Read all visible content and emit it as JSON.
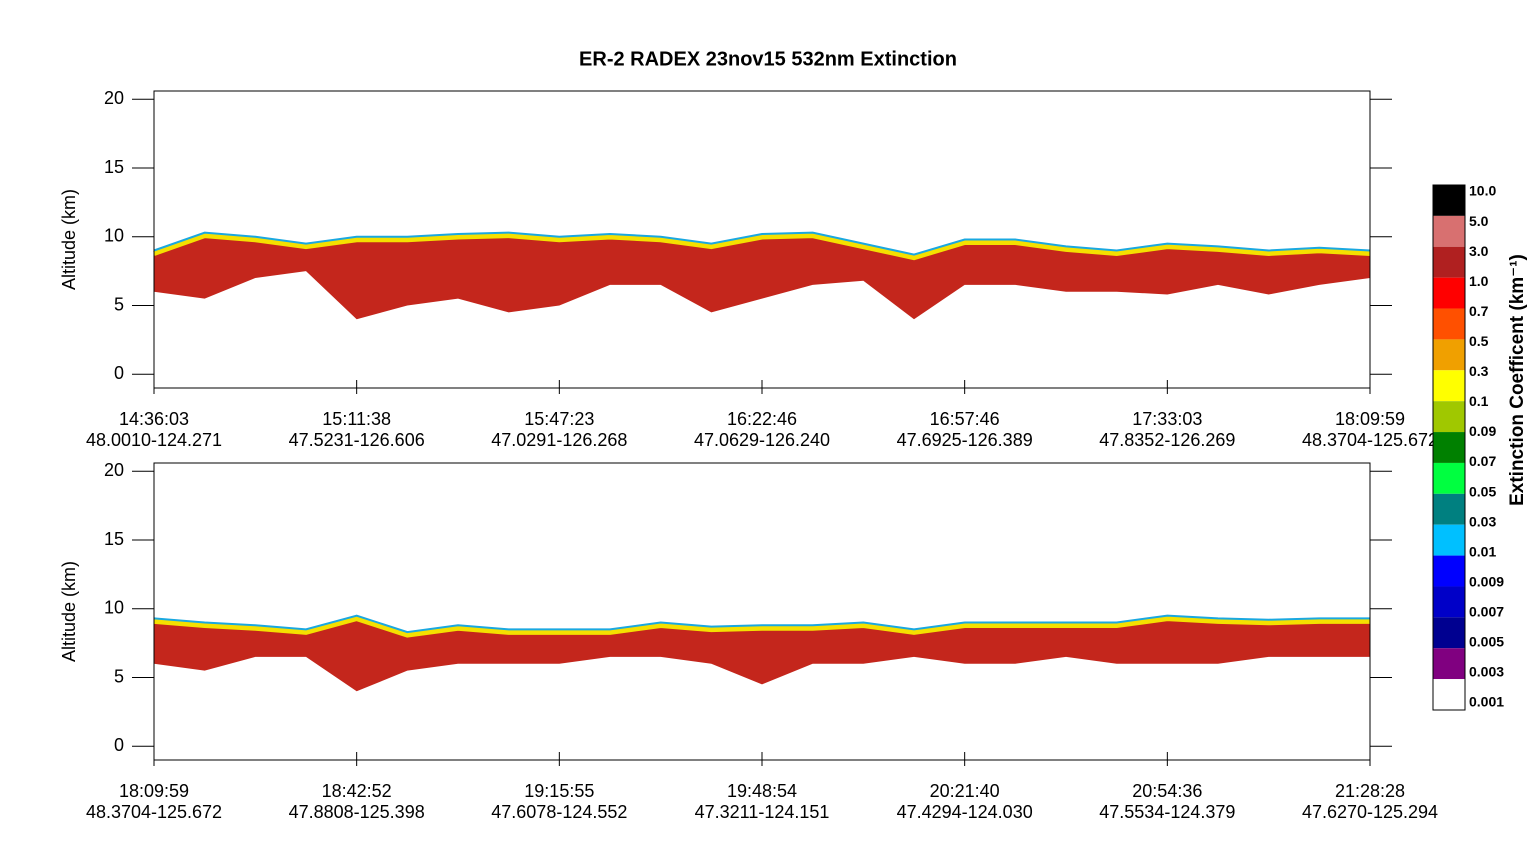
{
  "chart_data": [
    {
      "type": "curtain",
      "title": "ER-2  RADEX  23nov15  532nm Extinction",
      "ylabel": "Altitude (km)",
      "ylim": [
        -1,
        20.6
      ],
      "yticks": [
        0,
        5,
        10,
        15,
        20
      ],
      "xlim": [
        0,
        6
      ],
      "xticks": [
        {
          "value": 0,
          "label": "14:36:03"
        },
        {
          "value": 1,
          "label": "15:11:38"
        },
        {
          "value": 2,
          "label": "15:47:23"
        },
        {
          "value": 3,
          "label": "16:22:46"
        },
        {
          "value": 4,
          "label": "16:57:46"
        },
        {
          "value": 5,
          "label": "17:33:03"
        },
        {
          "value": 6,
          "label": "18:09:59"
        }
      ],
      "locations": [
        "48.0010-124.271",
        "47.5231-126.606",
        "47.0291-126.268",
        "47.0629-126.240",
        "47.6925-126.389",
        "47.8352-126.269",
        "48.3704-125.672"
      ],
      "fill_color": "#c4261c",
      "edge_color": "#f5e000",
      "top_color": "#1aa8e0",
      "x": [
        0,
        0.25,
        0.5,
        0.75,
        1,
        1.25,
        1.5,
        1.75,
        2,
        2.25,
        2.5,
        2.75,
        3,
        3.25,
        3.5,
        3.75,
        4,
        4.25,
        4.5,
        4.75,
        5,
        5.25,
        5.5,
        5.75,
        6
      ],
      "cloud_top": [
        9,
        10.3,
        10,
        9.5,
        10,
        10,
        10.2,
        10.3,
        10,
        10.2,
        10,
        9.5,
        10.2,
        10.3,
        9.5,
        8.7,
        9.8,
        9.8,
        9.3,
        9,
        9.5,
        9.3,
        9,
        9.2,
        9
      ],
      "cloud_base": [
        6,
        5.5,
        7,
        7.5,
        4,
        5,
        5.5,
        4.5,
        5,
        6.5,
        6.5,
        4.5,
        5.5,
        6.5,
        6.8,
        4,
        6.5,
        6.5,
        6,
        6,
        5.8,
        6.5,
        5.8,
        6.5,
        7
      ]
    },
    {
      "type": "curtain",
      "ylabel": "Altitude (km)",
      "ylim": [
        -1,
        20.6
      ],
      "yticks": [
        0,
        5,
        10,
        15,
        20
      ],
      "xlim": [
        0,
        6
      ],
      "xticks": [
        {
          "value": 0,
          "label": "18:09:59"
        },
        {
          "value": 1,
          "label": "18:42:52"
        },
        {
          "value": 2,
          "label": "19:15:55"
        },
        {
          "value": 3,
          "label": "19:48:54"
        },
        {
          "value": 4,
          "label": "20:21:40"
        },
        {
          "value": 5,
          "label": "20:54:36"
        },
        {
          "value": 6,
          "label": "21:28:28"
        }
      ],
      "locations": [
        "48.3704-125.672",
        "47.8808-125.398",
        "47.6078-124.552",
        "47.3211-124.151",
        "47.4294-124.030",
        "47.5534-124.379",
        "47.6270-125.294"
      ],
      "fill_color": "#c4261c",
      "edge_color": "#f5e000",
      "top_color": "#1aa8e0",
      "x": [
        0,
        0.25,
        0.5,
        0.75,
        1,
        1.25,
        1.5,
        1.75,
        2,
        2.25,
        2.5,
        2.75,
        3,
        3.25,
        3.5,
        3.75,
        4,
        4.25,
        4.5,
        4.75,
        5,
        5.25,
        5.5,
        5.75,
        6
      ],
      "cloud_top": [
        9.3,
        9,
        8.8,
        8.5,
        9.5,
        8.3,
        8.8,
        8.5,
        8.5,
        8.5,
        9,
        8.7,
        8.8,
        8.8,
        9,
        8.5,
        9,
        9,
        9,
        9,
        9.5,
        9.3,
        9.2,
        9.3,
        9.3
      ],
      "cloud_base": [
        6,
        5.5,
        6.5,
        6.5,
        4,
        5.5,
        6,
        6,
        6,
        6.5,
        6.5,
        6,
        4.5,
        6,
        6,
        6.5,
        6,
        6,
        6.5,
        6,
        6,
        6,
        6.5,
        6.5,
        6.5
      ]
    },
    {
      "type": "colorbar",
      "label": "Extinction Coefficent (km⁻¹)",
      "levels": [
        {
          "value": 10,
          "label": "10.0"
        },
        {
          "value": 5,
          "label": "5.0"
        },
        {
          "value": 3,
          "label": "3.0"
        },
        {
          "value": 1,
          "label": "1.0"
        },
        0.7,
        0.5,
        0.3,
        0.1,
        0.09,
        0.07,
        0.05,
        0.03,
        0.01,
        0.009,
        0.007,
        0.005,
        0.003,
        0.001
      ],
      "colors": [
        "#000000",
        "#d87070",
        "#b02020",
        "#ff0000",
        "#ff5000",
        "#f0a000",
        "#ffff00",
        "#a0c800",
        "#008000",
        "#00ff40",
        "#008080",
        "#00c0ff",
        "#0000ff",
        "#0000c8",
        "#000090",
        "#800080",
        "#ffffff"
      ]
    }
  ]
}
